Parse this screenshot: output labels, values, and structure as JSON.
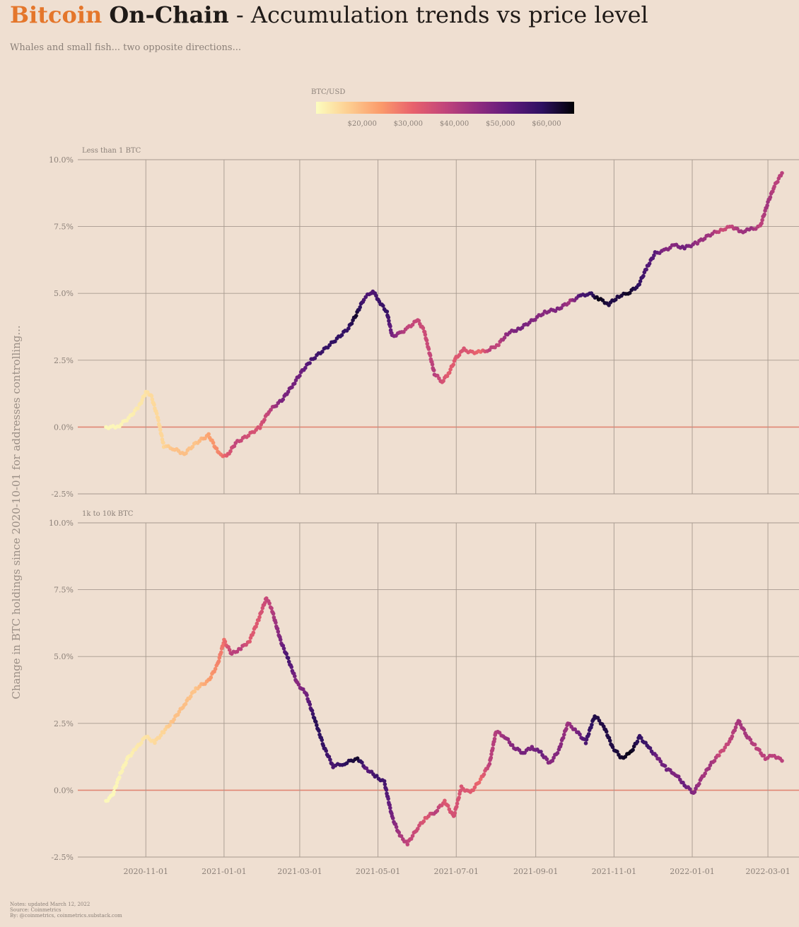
{
  "header": {
    "title_accent": "Bitcoin",
    "title_bold": "On-Chain",
    "title_rest": " - Accumulation trends vs price level",
    "subtitle": "Whales and small fish... two opposite directions..."
  },
  "colorbar": {
    "label": "BTC/USD",
    "ticks": [
      "$20,000",
      "$30,000",
      "$40,000",
      "$50,000",
      "$60,000"
    ],
    "tick_values": [
      20000,
      30000,
      40000,
      50000,
      60000
    ],
    "range": [
      10000,
      66000
    ],
    "colors": [
      "#fcfdbf",
      "#fdce91",
      "#fb9b6b",
      "#e8616c",
      "#c1457b",
      "#902c7f",
      "#5f1a7c",
      "#2e1161",
      "#000004"
    ]
  },
  "colors": {
    "background": "#efdfd1",
    "grid": "#a79a8f",
    "zero_line": "#e08674",
    "accent": "#e4762b"
  },
  "notes": {
    "line1": "Notes: updated March 12, 2022",
    "line2": "Source: Coinmetrics",
    "line3": "By: @coinmetrics, coinmetrics.substack.com"
  },
  "chart_data": {
    "type": "scatter",
    "ylabel": "Change in BTC holdings since 2020-10-01 for addresses controlling...",
    "x_ticks": [
      "2020-11-01",
      "2021-01-01",
      "2021-03-01",
      "2021-05-01",
      "2021-07-01",
      "2021-09-01",
      "2021-11-01",
      "2022-01-01",
      "2022-03-01"
    ],
    "xlim": [
      "2020-10-01",
      "2022-03-12"
    ],
    "y_ticks": [
      "-2.5%",
      "0.0%",
      "2.5%",
      "5.0%",
      "7.5%",
      "10.0%"
    ],
    "ylim": [
      -2.5,
      10.0
    ],
    "panels": [
      {
        "label": "Less than 1 BTC",
        "points": [
          [
            "2020-10-01",
            0.0,
            10800
          ],
          [
            "2020-10-10",
            0.0,
            11100
          ],
          [
            "2020-10-20",
            0.4,
            11900
          ],
          [
            "2020-10-27",
            0.8,
            13300
          ],
          [
            "2020-11-01",
            1.3,
            13800
          ],
          [
            "2020-11-05",
            1.2,
            15200
          ],
          [
            "2020-11-10",
            0.4,
            15400
          ],
          [
            "2020-11-15",
            -0.7,
            16000
          ],
          [
            "2020-11-22",
            -0.8,
            18600
          ],
          [
            "2020-12-01",
            -1.0,
            19000
          ],
          [
            "2020-12-10",
            -0.6,
            18300
          ],
          [
            "2020-12-20",
            -0.3,
            23000
          ],
          [
            "2020-12-28",
            -1.0,
            26500
          ],
          [
            "2021-01-03",
            -1.1,
            32000
          ],
          [
            "2021-01-10",
            -0.6,
            38000
          ],
          [
            "2021-01-20",
            -0.3,
            35000
          ],
          [
            "2021-01-29",
            0.0,
            34000
          ],
          [
            "2021-02-05",
            0.6,
            38000
          ],
          [
            "2021-02-15",
            1.0,
            48000
          ],
          [
            "2021-02-24",
            1.6,
            49000
          ],
          [
            "2021-03-03",
            2.1,
            50000
          ],
          [
            "2021-03-10",
            2.5,
            55000
          ],
          [
            "2021-03-20",
            2.9,
            58000
          ],
          [
            "2021-03-30",
            3.3,
            58800
          ],
          [
            "2021-04-08",
            3.7,
            58000
          ],
          [
            "2021-04-14",
            4.2,
            63000
          ],
          [
            "2021-04-20",
            4.8,
            55000
          ],
          [
            "2021-04-27",
            5.1,
            54000
          ],
          [
            "2021-05-02",
            4.7,
            57000
          ],
          [
            "2021-05-08",
            4.3,
            58000
          ],
          [
            "2021-05-12",
            3.4,
            49000
          ],
          [
            "2021-05-18",
            3.5,
            43000
          ],
          [
            "2021-05-24",
            3.7,
            38000
          ],
          [
            "2021-06-01",
            4.0,
            37000
          ],
          [
            "2021-06-06",
            3.6,
            36000
          ],
          [
            "2021-06-10",
            2.8,
            37000
          ],
          [
            "2021-06-14",
            2.0,
            40000
          ],
          [
            "2021-06-20",
            1.7,
            35000
          ],
          [
            "2021-06-25",
            2.0,
            32000
          ],
          [
            "2021-07-01",
            2.6,
            33000
          ],
          [
            "2021-07-07",
            2.9,
            34000
          ],
          [
            "2021-07-12",
            2.8,
            33000
          ],
          [
            "2021-07-20",
            2.8,
            30000
          ],
          [
            "2021-07-27",
            2.9,
            39000
          ],
          [
            "2021-08-03",
            3.1,
            38000
          ],
          [
            "2021-08-10",
            3.5,
            46000
          ],
          [
            "2021-08-20",
            3.7,
            49000
          ],
          [
            "2021-08-30",
            4.0,
            47000
          ],
          [
            "2021-09-08",
            4.3,
            46000
          ],
          [
            "2021-09-18",
            4.4,
            48000
          ],
          [
            "2021-09-28",
            4.7,
            42000
          ],
          [
            "2021-10-06",
            4.9,
            55000
          ],
          [
            "2021-10-13",
            5.0,
            57000
          ],
          [
            "2021-10-20",
            4.8,
            65000
          ],
          [
            "2021-10-28",
            4.6,
            61000
          ],
          [
            "2021-11-05",
            4.9,
            61000
          ],
          [
            "2021-11-12",
            5.0,
            64000
          ],
          [
            "2021-11-20",
            5.3,
            59000
          ],
          [
            "2021-11-27",
            6.0,
            54000
          ],
          [
            "2021-12-03",
            6.5,
            53000
          ],
          [
            "2021-12-10",
            6.6,
            47000
          ],
          [
            "2021-12-18",
            6.8,
            46000
          ],
          [
            "2021-12-26",
            6.7,
            50000
          ],
          [
            "2022-01-05",
            6.9,
            44000
          ],
          [
            "2022-01-15",
            7.2,
            43000
          ],
          [
            "2022-01-25",
            7.4,
            36000
          ],
          [
            "2022-02-01",
            7.5,
            38000
          ],
          [
            "2022-02-08",
            7.3,
            43000
          ],
          [
            "2022-02-16",
            7.4,
            44000
          ],
          [
            "2022-02-23",
            7.5,
            38000
          ],
          [
            "2022-03-01",
            8.4,
            43000
          ],
          [
            "2022-03-06",
            9.0,
            39000
          ],
          [
            "2022-03-12",
            9.5,
            39000
          ]
        ]
      },
      {
        "label": "1k to 10k BTC",
        "points": [
          [
            "2020-10-01",
            -0.4,
            10800
          ],
          [
            "2020-10-06",
            -0.2,
            10700
          ],
          [
            "2020-10-12",
            0.6,
            11400
          ],
          [
            "2020-10-18",
            1.2,
            11600
          ],
          [
            "2020-10-25",
            1.6,
            13000
          ],
          [
            "2020-11-01",
            2.0,
            13800
          ],
          [
            "2020-11-08",
            1.8,
            15400
          ],
          [
            "2020-11-15",
            2.2,
            16000
          ],
          [
            "2020-11-22",
            2.6,
            18600
          ],
          [
            "2020-12-01",
            3.2,
            19000
          ],
          [
            "2020-12-10",
            3.8,
            18300
          ],
          [
            "2020-12-20",
            4.1,
            23500
          ],
          [
            "2020-12-27",
            4.7,
            26500
          ],
          [
            "2021-01-01",
            5.6,
            29000
          ],
          [
            "2021-01-07",
            5.1,
            39000
          ],
          [
            "2021-01-14",
            5.3,
            39000
          ],
          [
            "2021-01-21",
            5.6,
            33000
          ],
          [
            "2021-01-28",
            6.4,
            33000
          ],
          [
            "2021-02-03",
            7.2,
            37000
          ],
          [
            "2021-02-07",
            6.8,
            39000
          ],
          [
            "2021-02-14",
            5.6,
            48000
          ],
          [
            "2021-02-20",
            4.9,
            56000
          ],
          [
            "2021-02-27",
            4.0,
            46000
          ],
          [
            "2021-03-06",
            3.6,
            49000
          ],
          [
            "2021-03-13",
            2.6,
            60000
          ],
          [
            "2021-03-20",
            1.6,
            58000
          ],
          [
            "2021-03-27",
            0.9,
            55000
          ],
          [
            "2021-04-05",
            1.0,
            59000
          ],
          [
            "2021-04-15",
            1.2,
            63000
          ],
          [
            "2021-04-22",
            0.8,
            52000
          ],
          [
            "2021-04-30",
            0.5,
            57000
          ],
          [
            "2021-05-06",
            0.3,
            56000
          ],
          [
            "2021-05-12",
            -1.0,
            49000
          ],
          [
            "2021-05-18",
            -1.7,
            42000
          ],
          [
            "2021-05-24",
            -2.0,
            38000
          ],
          [
            "2021-06-01",
            -1.4,
            36000
          ],
          [
            "2021-06-08",
            -1.0,
            33000
          ],
          [
            "2021-06-15",
            -0.8,
            40000
          ],
          [
            "2021-06-22",
            -0.4,
            33000
          ],
          [
            "2021-06-29",
            -1.0,
            35000
          ],
          [
            "2021-07-05",
            0.1,
            34000
          ],
          [
            "2021-07-12",
            -0.1,
            33000
          ],
          [
            "2021-07-20",
            0.4,
            30000
          ],
          [
            "2021-07-27",
            1.0,
            39000
          ],
          [
            "2021-08-01",
            2.2,
            40000
          ],
          [
            "2021-08-08",
            2.0,
            44000
          ],
          [
            "2021-08-15",
            1.6,
            47000
          ],
          [
            "2021-08-22",
            1.4,
            49000
          ],
          [
            "2021-08-29",
            1.6,
            48000
          ],
          [
            "2021-09-05",
            1.4,
            51000
          ],
          [
            "2021-09-12",
            1.0,
            46000
          ],
          [
            "2021-09-19",
            1.5,
            47000
          ],
          [
            "2021-09-26",
            2.5,
            43000
          ],
          [
            "2021-10-03",
            2.2,
            48000
          ],
          [
            "2021-10-10",
            1.8,
            55000
          ],
          [
            "2021-10-17",
            2.8,
            61000
          ],
          [
            "2021-10-24",
            2.4,
            61000
          ],
          [
            "2021-10-31",
            1.6,
            61000
          ],
          [
            "2021-11-07",
            1.2,
            63000
          ],
          [
            "2021-11-14",
            1.4,
            65000
          ],
          [
            "2021-11-21",
            2.0,
            58000
          ],
          [
            "2021-11-28",
            1.6,
            57000
          ],
          [
            "2021-12-05",
            1.2,
            49000
          ],
          [
            "2021-12-12",
            0.8,
            50000
          ],
          [
            "2021-12-19",
            0.6,
            47000
          ],
          [
            "2021-12-26",
            0.2,
            51000
          ],
          [
            "2022-01-02",
            -0.1,
            47000
          ],
          [
            "2022-01-09",
            0.5,
            42000
          ],
          [
            "2022-01-16",
            1.0,
            43000
          ],
          [
            "2022-01-23",
            1.4,
            36000
          ],
          [
            "2022-01-30",
            1.8,
            38000
          ],
          [
            "2022-02-06",
            2.6,
            42000
          ],
          [
            "2022-02-13",
            2.0,
            42000
          ],
          [
            "2022-02-20",
            1.6,
            39000
          ],
          [
            "2022-02-27",
            1.2,
            39000
          ],
          [
            "2022-03-06",
            1.3,
            39000
          ],
          [
            "2022-03-12",
            1.1,
            39000
          ]
        ]
      }
    ]
  }
}
